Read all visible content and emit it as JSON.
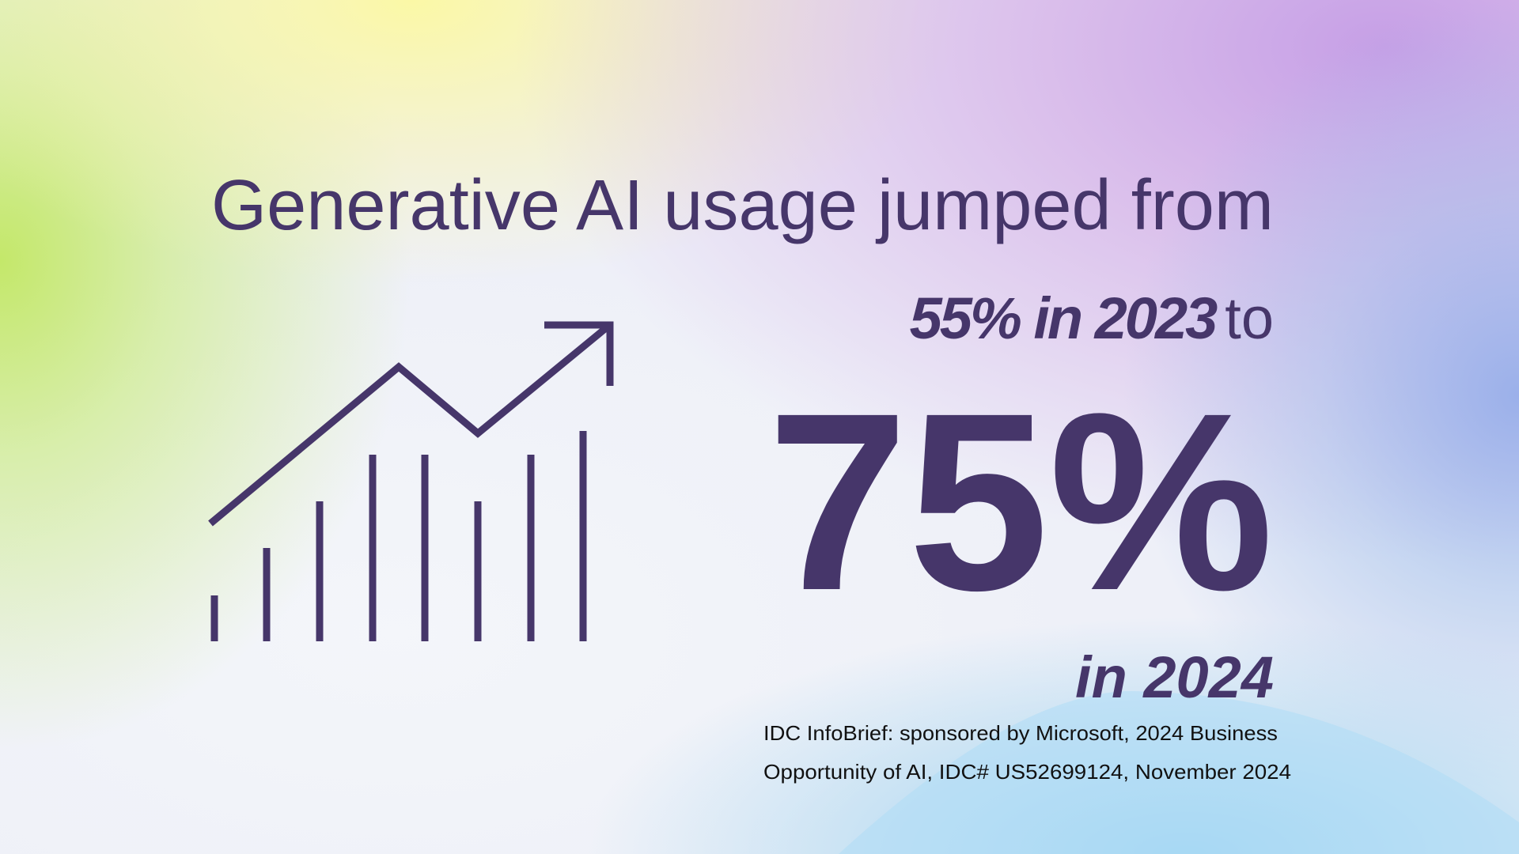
{
  "headline": "Generative AI usage jumped from",
  "stat_2023": {
    "value": "55% in 2023",
    "connector": "to"
  },
  "stat_2024": {
    "value": "75%",
    "year_label": "in 2024"
  },
  "source": {
    "line1": "IDC InfoBrief: sponsored by Microsoft, 2024 Business",
    "line2": "Opportunity of AI, IDC# US52699124, November 2024"
  },
  "icon": "growth-chart-arrow-icon",
  "colors": {
    "text": "#46366a"
  }
}
